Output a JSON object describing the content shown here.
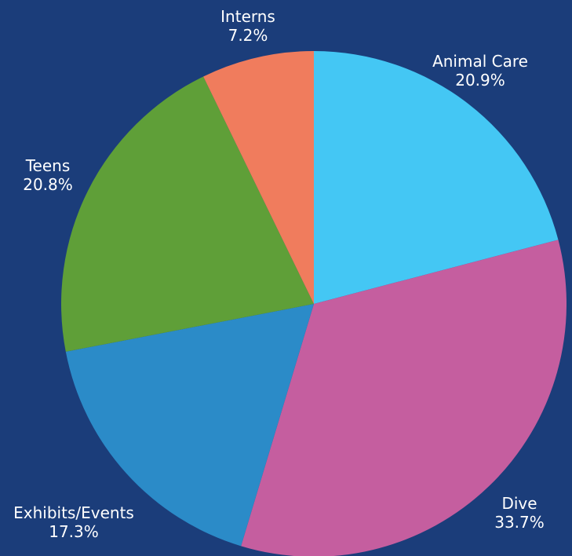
{
  "chart_data": {
    "type": "pie",
    "background_color": "#1b3d7a",
    "start_angle_deg": 0,
    "direction": "clockwise",
    "slices": [
      {
        "label": "Animal Care",
        "value": 20.9,
        "value_label": "20.9%",
        "color": "#44c7f4"
      },
      {
        "label": "Dive",
        "value": 33.7,
        "value_label": "33.7%",
        "color": "#c55e9f"
      },
      {
        "label": "Exhibits/Events",
        "value": 17.3,
        "value_label": "17.3%",
        "color": "#2b8bc8"
      },
      {
        "label": "Teens",
        "value": 20.8,
        "value_label": "20.8%",
        "color": "#5f9f38"
      },
      {
        "label": "Interns",
        "value": 7.2,
        "value_label": "7.2%",
        "color": "#f07c5d"
      }
    ]
  }
}
